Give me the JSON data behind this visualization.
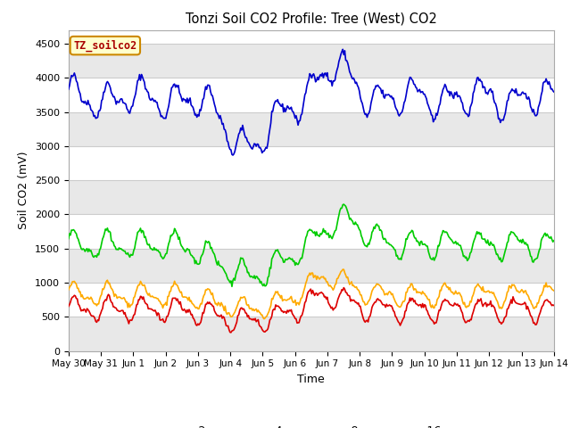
{
  "title": "Tonzi Soil CO2 Profile: Tree (West) CO2",
  "ylabel": "Soil CO2 (mV)",
  "xlabel": "Time",
  "ylim": [
    0,
    4700
  ],
  "yticks": [
    0,
    500,
    1000,
    1500,
    2000,
    2500,
    3000,
    3500,
    4000,
    4500
  ],
  "fig_bg_color": "#ffffff",
  "plot_bg_color": "#ffffff",
  "band_light": "#e8e8e8",
  "band_dark": "#d0d0d0",
  "line_colors": {
    "-2cm": "#dd0000",
    "-4cm": "#ffaa00",
    "-8cm": "#00cc00",
    "-16cm": "#0000cc"
  },
  "legend_label": "TZ_soilco2",
  "legend_box_facecolor": "#ffffcc",
  "legend_box_edgecolor": "#cc8800",
  "tick_labels": [
    "May 30",
    "May 31",
    "Jun 1",
    "Jun 2",
    "Jun 3",
    "Jun 4",
    "Jun 5",
    "Jun 6",
    "Jun 7",
    "Jun 8",
    "Jun 9",
    "Jun 10",
    "Jun 11",
    "Jun 12",
    "Jun 13",
    "Jun 14"
  ],
  "n_points": 500
}
